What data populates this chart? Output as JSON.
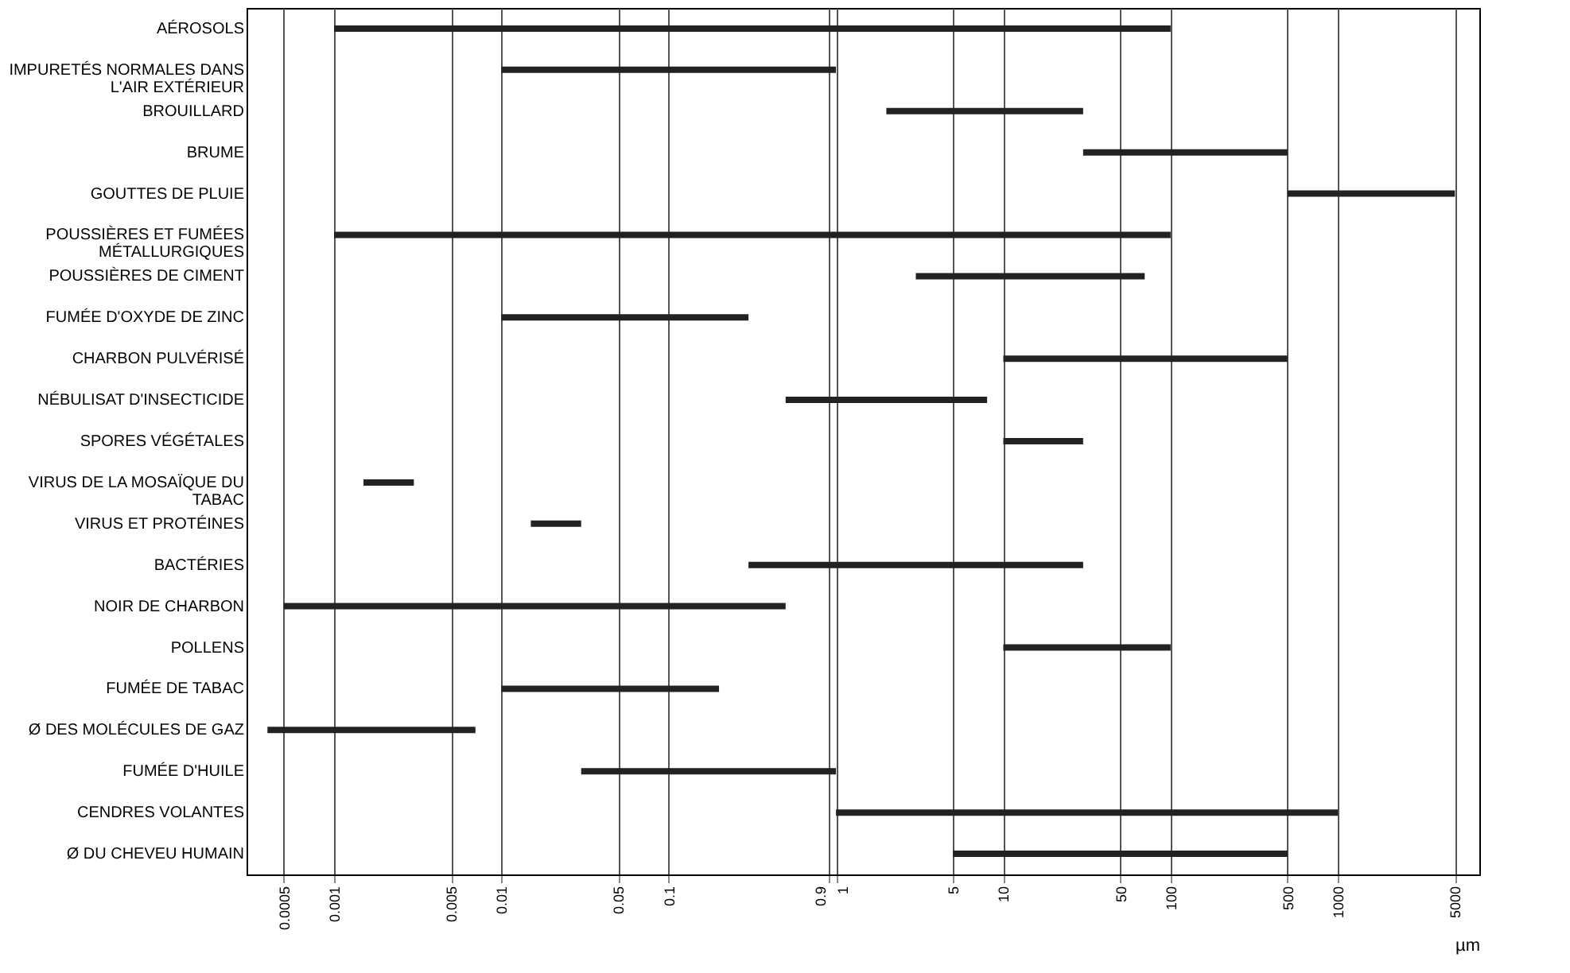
{
  "chart_data": {
    "type": "bar",
    "orientation": "horizontal",
    "log": "x",
    "xlabel": "µm",
    "categories": [
      "AÉROSOLS",
      "IMPURETÉS NORMALES DANS L'AIR EXTÉRIEUR",
      "BROUILLARD",
      "BRUME",
      "GOUTTES DE PLUIE",
      "POUSSIÈRES ET FUMÉES MÉTALLURGIQUES",
      "POUSSIÈRES DE CIMENT",
      "FUMÉE D'OXYDE DE ZINC",
      "CHARBON PULVÉRISÉ",
      "NÉBULISAT D'INSECTICIDE",
      "SPORES VÉGÉTALES",
      "VIRUS DE LA MOSAÏQUE DU TABAC",
      "VIRUS ET PROTÉINES",
      "BACTÉRIES",
      "NOIR DE CHARBON",
      "POLLENS",
      "FUMÉE DE TABAC",
      "Ø DES MOLÉCULES DE GAZ",
      "FUMÉE D'HUILE",
      "CENDRES VOLANTES",
      "Ø DU CHEVEU HUMAIN"
    ],
    "base": [
      0.001,
      0.01,
      2,
      30,
      500,
      0.001,
      3,
      0.01,
      10,
      0.5,
      10,
      0.0015,
      0.015,
      0.3,
      0.0005,
      10,
      0.01,
      0.0004,
      0.03,
      1,
      5
    ],
    "values": [
      99.999,
      0.99,
      28,
      470,
      4500,
      99.999,
      67,
      0.29,
      490,
      7.5,
      20,
      0.0015,
      0.015,
      29.7,
      0.4995,
      90,
      0.19,
      0.0066,
      0.97,
      999,
      495
    ],
    "color": "#222222",
    "xlim": [
      0.0003,
      7000
    ],
    "xticks": [
      0.0005,
      0.001,
      0.005,
      0.01,
      0.05,
      0.1,
      0.9,
      1,
      5,
      10,
      50,
      100,
      500,
      1000,
      5000
    ],
    "grid": "x"
  }
}
